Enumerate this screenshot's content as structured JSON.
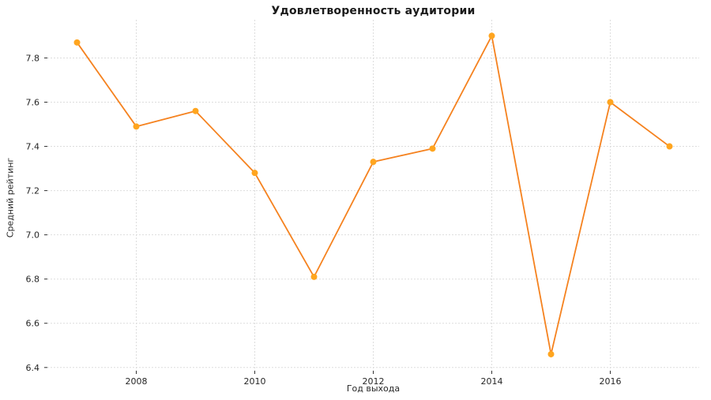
{
  "chart_data": {
    "type": "line",
    "title": "Удовлетворенность аудитории",
    "xlabel": "Год выхода",
    "ylabel": "Средний рейтинг",
    "x": [
      2007,
      2008,
      2009,
      2010,
      2011,
      2012,
      2013,
      2014,
      2015,
      2016,
      2017
    ],
    "series": [
      {
        "name": "Средний рейтинг",
        "values": [
          7.87,
          7.49,
          7.56,
          7.28,
          6.81,
          7.33,
          7.39,
          7.9,
          6.46,
          7.6,
          7.4
        ]
      }
    ],
    "xticks": [
      2008,
      2010,
      2012,
      2014,
      2016
    ],
    "yticks": [
      6.4,
      6.6,
      6.8,
      7.0,
      7.2,
      7.4,
      7.6,
      7.8
    ],
    "xlim": [
      2006.5,
      2017.5
    ],
    "ylim": [
      6.385,
      7.955
    ],
    "grid": true,
    "grid_style": "dashed",
    "legend": "none",
    "colors": {
      "line": "#f5821f",
      "marker": "#ffa51f",
      "grid": "#dddddd",
      "tick_text": "#262626",
      "title_text": "#1a1a1a"
    }
  }
}
